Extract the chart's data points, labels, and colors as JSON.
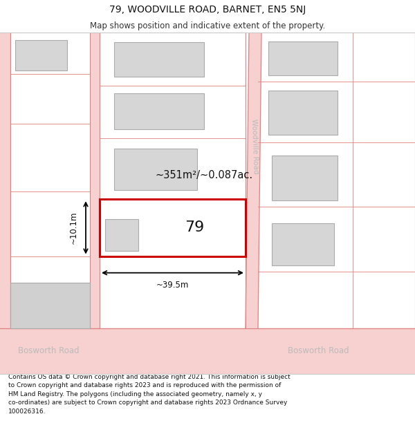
{
  "title": "79, WOODVILLE ROAD, BARNET, EN5 5NJ",
  "subtitle": "Map shows position and indicative extent of the property.",
  "footer": "Contains OS data © Crown copyright and database right 2021. This information is subject\nto Crown copyright and database rights 2023 and is reproduced with the permission of\nHM Land Registry. The polygons (including the associated geometry, namely x, y\nco-ordinates) are subject to Crown copyright and database rights 2023 Ordnance Survey\n100026316.",
  "bg_color": "#ffffff",
  "road_fill": "#f7d0d0",
  "road_edge": "#e08080",
  "building_fill": "#d6d6d6",
  "building_edge": "#aaaaaa",
  "highlight_edge": "#cc0000",
  "highlight_fill": "#ffffff",
  "label_79": "79",
  "area_label": "~351m²/~0.087ac.",
  "dim_width": "~39.5m",
  "dim_height": "~10.1m",
  "woodville_label": "Woodville Road",
  "bosworth_label_l": "Bosworth Road",
  "bosworth_label_r": "Bosworth Road",
  "title_fontsize": 10,
  "subtitle_fontsize": 8.5,
  "footer_fontsize": 6.5
}
